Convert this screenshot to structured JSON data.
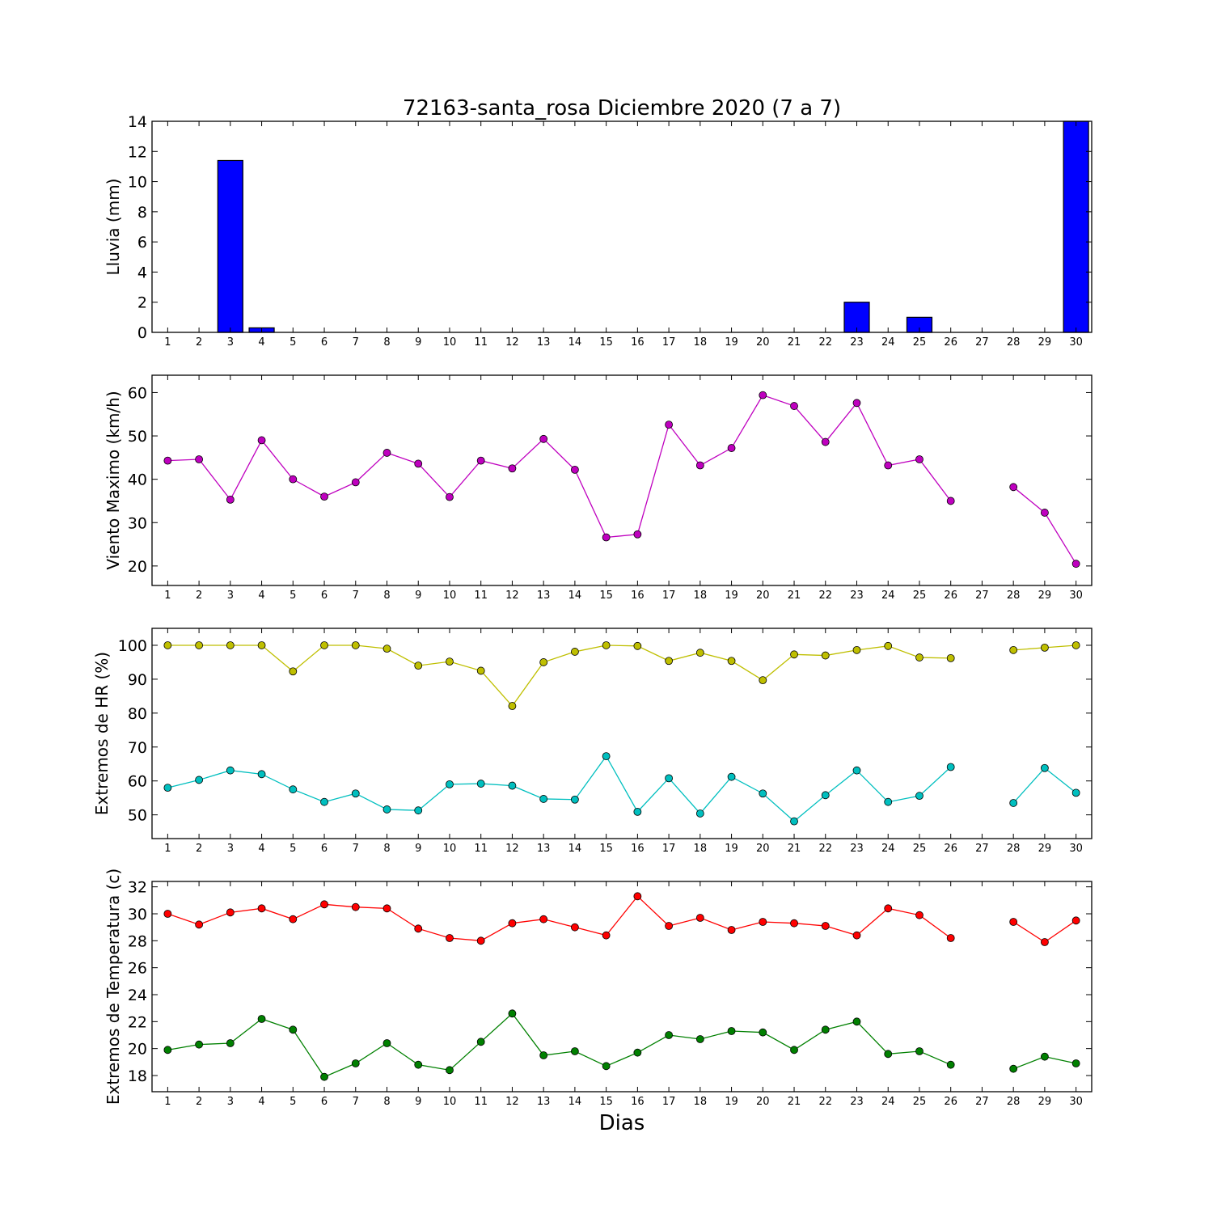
{
  "chart_data": [
    {
      "type": "bar",
      "title": "72163-santa_rosa Diciembre 2020  (7 a 7)",
      "ylabel": "Lluvia (mm)",
      "xlabel": "",
      "ylim": [
        0,
        14
      ],
      "yticks": [
        0,
        2,
        4,
        6,
        8,
        10,
        12,
        14
      ],
      "grid": false,
      "color": "#0000ff",
      "x": [
        1,
        2,
        3,
        4,
        5,
        6,
        7,
        8,
        9,
        10,
        11,
        12,
        13,
        14,
        15,
        16,
        17,
        18,
        19,
        20,
        21,
        22,
        23,
        24,
        25,
        26,
        27,
        28,
        29,
        30
      ],
      "values": [
        0,
        0,
        11.4,
        0.3,
        0,
        0,
        0,
        0,
        0,
        0,
        0,
        0,
        0,
        0,
        0,
        0,
        0,
        0,
        0,
        0,
        0,
        0,
        2.0,
        0,
        1.0,
        0,
        0,
        0,
        0,
        14.0
      ]
    },
    {
      "type": "line",
      "title": "",
      "ylabel": "Viento Maximo (km/h)",
      "xlabel": "",
      "ylim": [
        15.5,
        64
      ],
      "yticks": [
        20,
        30,
        40,
        50,
        60
      ],
      "grid": false,
      "x": [
        1,
        2,
        3,
        4,
        5,
        6,
        7,
        8,
        9,
        10,
        11,
        12,
        13,
        14,
        15,
        16,
        17,
        18,
        19,
        20,
        21,
        22,
        23,
        24,
        25,
        26,
        27,
        28,
        29,
        30
      ],
      "series": [
        {
          "color": "#bf00bf",
          "values": [
            44.3,
            44.6,
            35.3,
            49.0,
            40.0,
            36.0,
            39.3,
            46.1,
            43.6,
            35.9,
            44.3,
            42.5,
            49.3,
            42.2,
            26.6,
            27.3,
            52.6,
            43.2,
            47.2,
            59.4,
            56.9,
            48.6,
            57.6,
            43.2,
            44.6,
            35.0,
            null,
            38.2,
            32.3,
            20.5
          ]
        }
      ]
    },
    {
      "type": "line",
      "title": "",
      "ylabel": "Extremos de HR (%)",
      "xlabel": "",
      "ylim": [
        43,
        105
      ],
      "yticks": [
        50,
        60,
        70,
        80,
        90,
        100
      ],
      "grid": false,
      "x": [
        1,
        2,
        3,
        4,
        5,
        6,
        7,
        8,
        9,
        10,
        11,
        12,
        13,
        14,
        15,
        16,
        17,
        18,
        19,
        20,
        21,
        22,
        23,
        24,
        25,
        26,
        27,
        28,
        29,
        30
      ],
      "series": [
        {
          "color": "#bfbf00",
          "values": [
            100,
            100,
            100,
            100,
            92.3,
            100,
            100,
            99.0,
            94.0,
            95.2,
            92.5,
            82.1,
            95.0,
            98.1,
            100,
            99.8,
            95.4,
            97.8,
            95.4,
            89.7,
            97.3,
            97.0,
            98.6,
            99.8,
            96.4,
            96.2,
            null,
            98.6,
            99.3,
            100
          ]
        },
        {
          "color": "#00bfbf",
          "values": [
            58.0,
            60.3,
            63.1,
            62.0,
            57.5,
            53.8,
            56.3,
            51.6,
            51.3,
            59.0,
            59.2,
            58.6,
            54.7,
            54.5,
            67.3,
            50.9,
            60.8,
            50.4,
            61.2,
            56.3,
            48.1,
            55.8,
            63.1,
            53.8,
            55.6,
            64.1,
            null,
            53.5,
            63.8,
            56.5
          ]
        }
      ]
    },
    {
      "type": "line",
      "title": "",
      "ylabel": "Extremos de Temperatura (c)",
      "xlabel": "Dias",
      "ylim": [
        16.8,
        32.4
      ],
      "yticks": [
        18,
        20,
        22,
        24,
        26,
        28,
        30,
        32
      ],
      "grid": false,
      "x": [
        1,
        2,
        3,
        4,
        5,
        6,
        7,
        8,
        9,
        10,
        11,
        12,
        13,
        14,
        15,
        16,
        17,
        18,
        19,
        20,
        21,
        22,
        23,
        24,
        25,
        26,
        27,
        28,
        29,
        30
      ],
      "series": [
        {
          "color": "#ff0000",
          "values": [
            30.0,
            29.2,
            30.1,
            30.4,
            29.6,
            30.7,
            30.5,
            30.4,
            28.9,
            28.2,
            28.0,
            29.3,
            29.6,
            29.0,
            28.4,
            31.3,
            29.1,
            29.7,
            28.8,
            29.4,
            29.3,
            29.1,
            28.4,
            30.4,
            29.9,
            28.2,
            null,
            29.4,
            27.9,
            29.5
          ]
        },
        {
          "color": "#008000",
          "values": [
            19.9,
            20.3,
            20.4,
            22.2,
            21.4,
            17.9,
            18.9,
            20.4,
            18.8,
            18.4,
            20.5,
            22.6,
            19.5,
            19.8,
            18.7,
            19.7,
            21.0,
            20.7,
            21.3,
            21.2,
            19.9,
            21.4,
            22.0,
            19.6,
            19.8,
            18.8,
            null,
            18.5,
            19.4,
            18.9
          ]
        }
      ]
    }
  ]
}
